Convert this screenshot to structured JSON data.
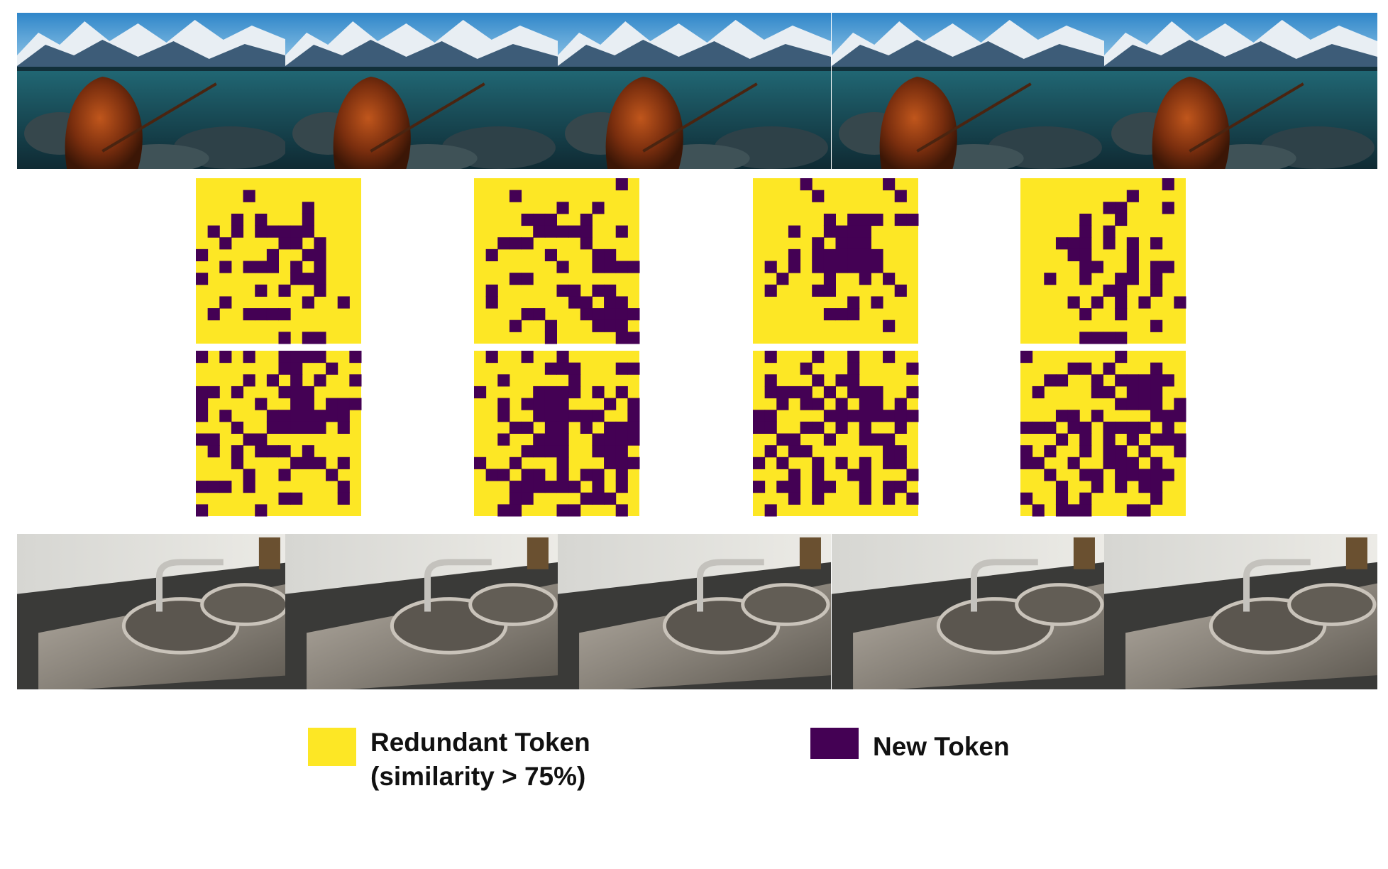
{
  "legend": {
    "redundant": {
      "label": "Redundant Token",
      "note": "(similarity > 75%)"
    },
    "new": {
      "label": "New Token"
    }
  }
}
